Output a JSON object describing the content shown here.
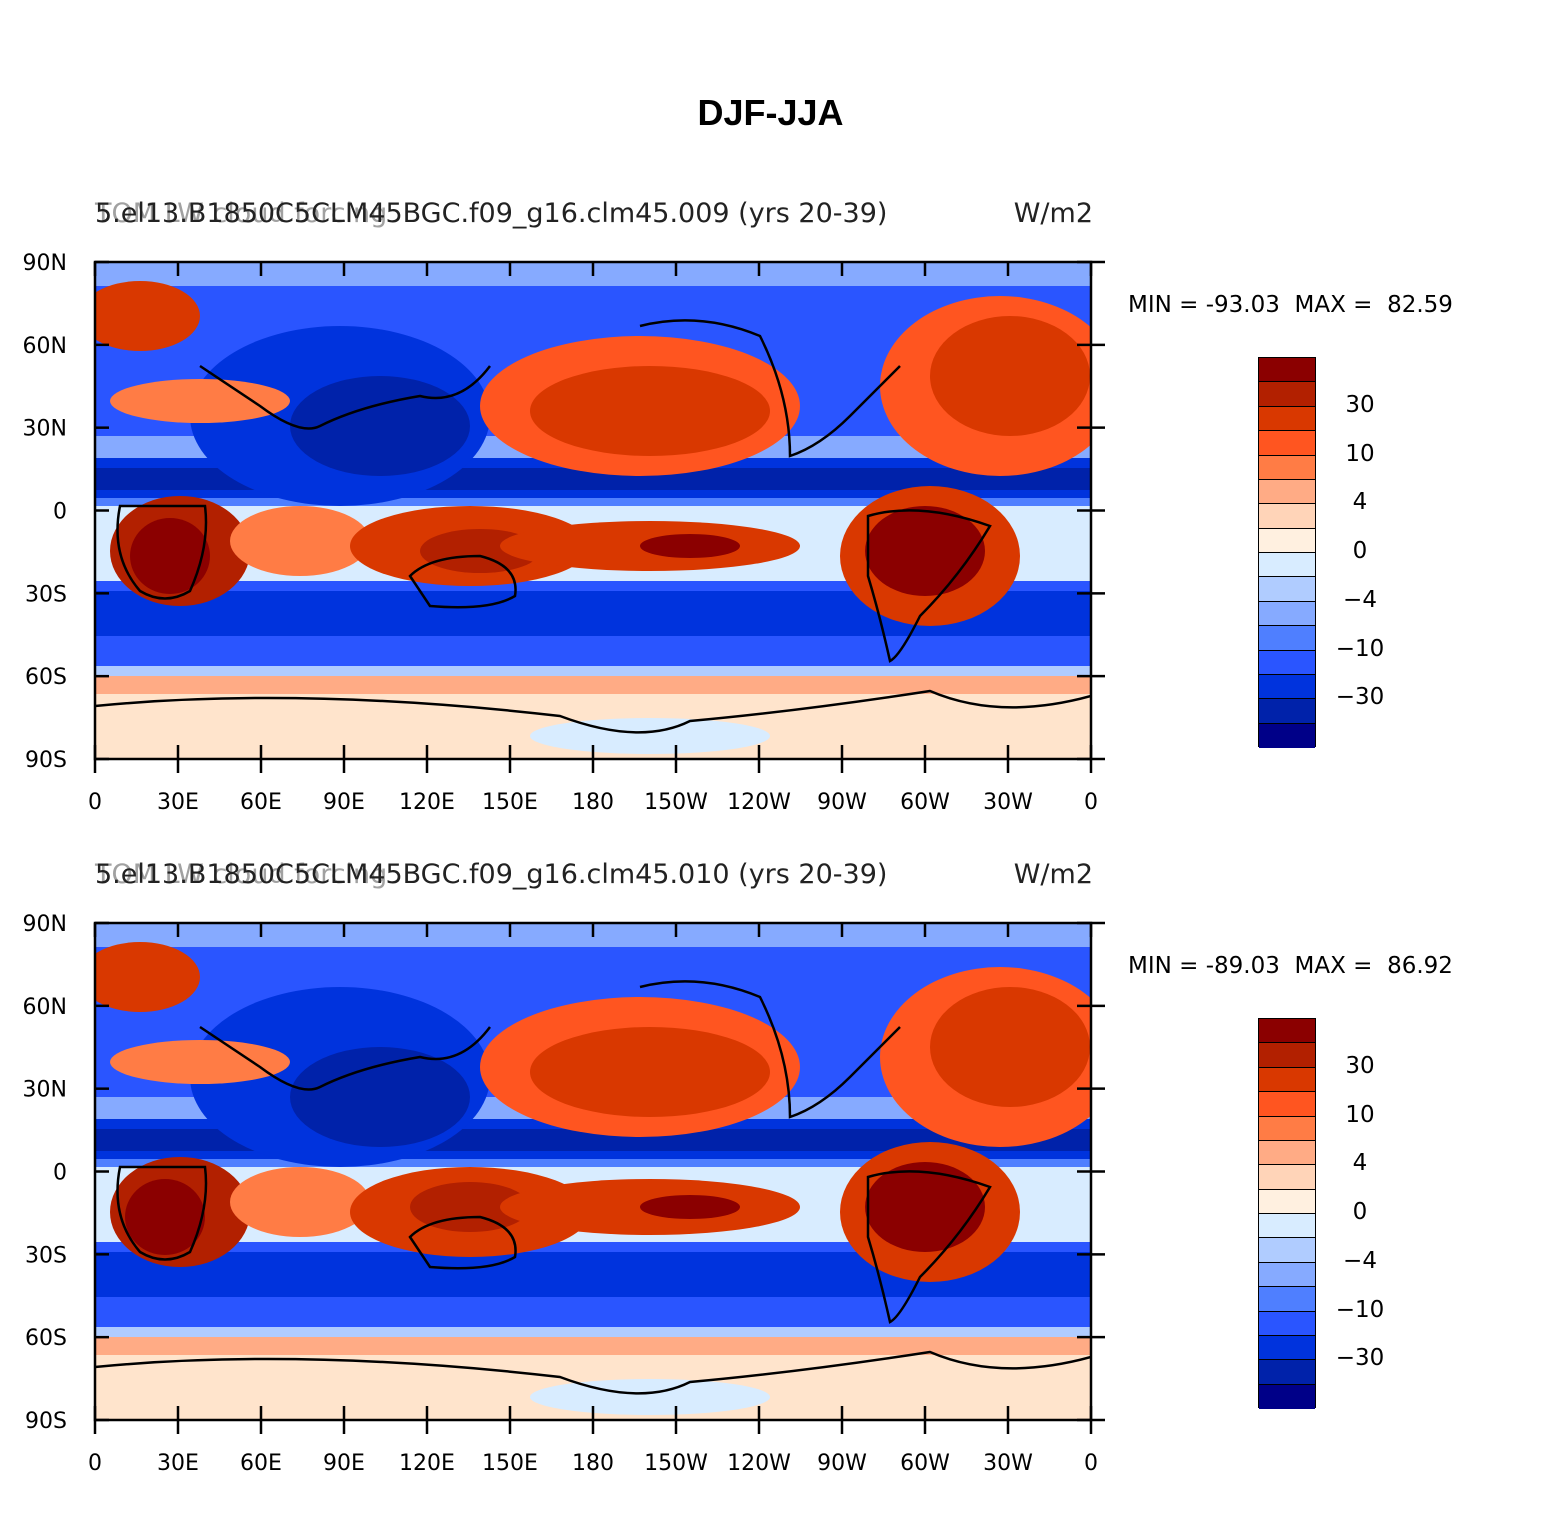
{
  "title": "DJF-JJA",
  "panels": [
    {
      "left_title": "5.el13.B1850C5CLM45BGC.f09_g16.clm45.009 (yrs 20-39)",
      "overlay_title": "TOM LW cloud forcing",
      "units": "W/m2",
      "min_label": "MIN = ",
      "min": "-93.03",
      "max_label": "MAX = ",
      "max": "82.59"
    },
    {
      "left_title": "5.el13.B1850C5CLM45BGC.f09_g16.clm45.010 (yrs 20-39)",
      "overlay_title": "TOM LW cloud forcing",
      "units": "W/m2",
      "min_label": "MIN = ",
      "min": "-89.03",
      "max_label": "MAX = ",
      "max": "86.92"
    }
  ],
  "axes": {
    "lat_labels": [
      "90N",
      "60N",
      "30N",
      "0",
      "30S",
      "60S",
      "90S"
    ],
    "lon_labels": [
      "0",
      "30E",
      "60E",
      "90E",
      "120E",
      "150E",
      "180",
      "150W",
      "120W",
      "90W",
      "60W",
      "30W",
      "0"
    ]
  },
  "colorbar": {
    "colors": [
      "#8b0000",
      "#b22000",
      "#d93800",
      "#ff5520",
      "#ff7c45",
      "#ffab85",
      "#ffd4b8",
      "#fff0e0",
      "#d8ecff",
      "#b0ccff",
      "#86aaff",
      "#4f7fff",
      "#2a55ff",
      "#0033dd",
      "#0022aa",
      "#000088"
    ],
    "labels": [
      "30",
      "10",
      "4",
      "0",
      "-4",
      "-10",
      "-30"
    ]
  },
  "colors": {
    "ocean_blue": "#2a55ff",
    "deep_blue": "#0033cc",
    "light_blue": "#86aaff",
    "pale_blue": "#d8ecff",
    "red": "#d93800",
    "dark_red": "#8b0000",
    "orange": "#ff7c45",
    "pale_orange": "#ffe4cc"
  }
}
